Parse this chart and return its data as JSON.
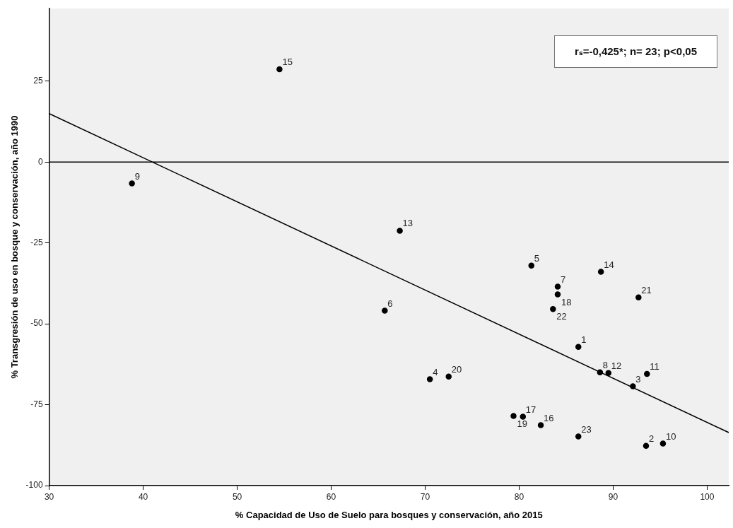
{
  "chart_data": {
    "type": "scatter",
    "xlabel": "% Capacidad de Uso de Suelo para bosques y conservación, año 2015",
    "ylabel": "% Transgresión de uso en bosque y conservación, año 1990",
    "xlim": [
      30,
      102.3
    ],
    "xticks": [
      30,
      40,
      50,
      60,
      70,
      80,
      90,
      100
    ],
    "ylim": [
      -100,
      47.5
    ],
    "yticks": [
      -100,
      -75,
      -50,
      -25,
      0,
      25
    ],
    "grid": false,
    "legend": false,
    "marker": "circle",
    "series": [
      {
        "color": "#000000",
        "x": [
          86.3,
          93.5,
          92.1,
          70.5,
          81.3,
          65.7,
          84.1,
          88.6,
          38.8,
          95.3,
          93.6,
          89.5,
          67.3,
          88.7,
          54.5,
          82.3,
          80.4,
          84.1,
          79.4,
          72.5,
          92.7,
          83.6,
          86.3
        ],
        "values": [
          -57.1,
          -87.7,
          -69.3,
          -67.1,
          -32.0,
          -45.9,
          -38.5,
          -65.0,
          -6.6,
          -87.0,
          -65.5,
          -65.2,
          -21.2,
          -33.9,
          28.7,
          -81.3,
          -78.7,
          -40.9,
          -78.5,
          -66.3,
          -41.8,
          -45.4,
          -84.8
        ]
      },
      {
        "type": "line",
        "color": "#000000",
        "marker": "none",
        "x": [
          30,
          102.3
        ],
        "values": [
          15,
          -83.6
        ]
      }
    ],
    "ref_lines": [
      {
        "axis": "y",
        "value": 0,
        "color": "#000000"
      }
    ],
    "annotations": [
      "rₛ=-0,425*; n= 23; p<0,05",
      {
        "text": "1",
        "x": 86.3,
        "y": -57.1
      },
      {
        "text": "2",
        "x": 93.5,
        "y": -87.7
      },
      {
        "text": "3",
        "x": 92.1,
        "y": -69.3
      },
      {
        "text": "4",
        "x": 70.5,
        "y": -67.1
      },
      {
        "text": "5",
        "x": 81.3,
        "y": -32.0
      },
      {
        "text": "6",
        "x": 65.7,
        "y": -45.9
      },
      {
        "text": "7",
        "x": 84.1,
        "y": -38.5
      },
      {
        "text": "8",
        "x": 88.6,
        "y": -65.0
      },
      {
        "text": "9",
        "x": 38.8,
        "y": -6.6
      },
      {
        "text": "10",
        "x": 95.3,
        "y": -87.0
      },
      {
        "text": "11",
        "x": 93.6,
        "y": -65.5
      },
      {
        "text": "12",
        "x": 89.5,
        "y": -65.2
      },
      {
        "text": "13",
        "x": 67.3,
        "y": -21.2
      },
      {
        "text": "14",
        "x": 88.7,
        "y": -33.9
      },
      {
        "text": "15",
        "x": 54.5,
        "y": 28.7
      },
      {
        "text": "16",
        "x": 82.3,
        "y": -81.3
      },
      {
        "text": "17",
        "x": 80.4,
        "y": -78.7
      },
      {
        "text": "18",
        "x": 84.1,
        "y": -40.9
      },
      {
        "text": "19",
        "x": 79.4,
        "y": -78.5
      },
      {
        "text": "20",
        "x": 72.5,
        "y": -66.3
      },
      {
        "text": "21",
        "x": 92.7,
        "y": -41.8
      },
      {
        "text": "22",
        "x": 83.6,
        "y": -45.4
      },
      {
        "text": "23",
        "x": 86.3,
        "y": -84.8
      }
    ]
  }
}
